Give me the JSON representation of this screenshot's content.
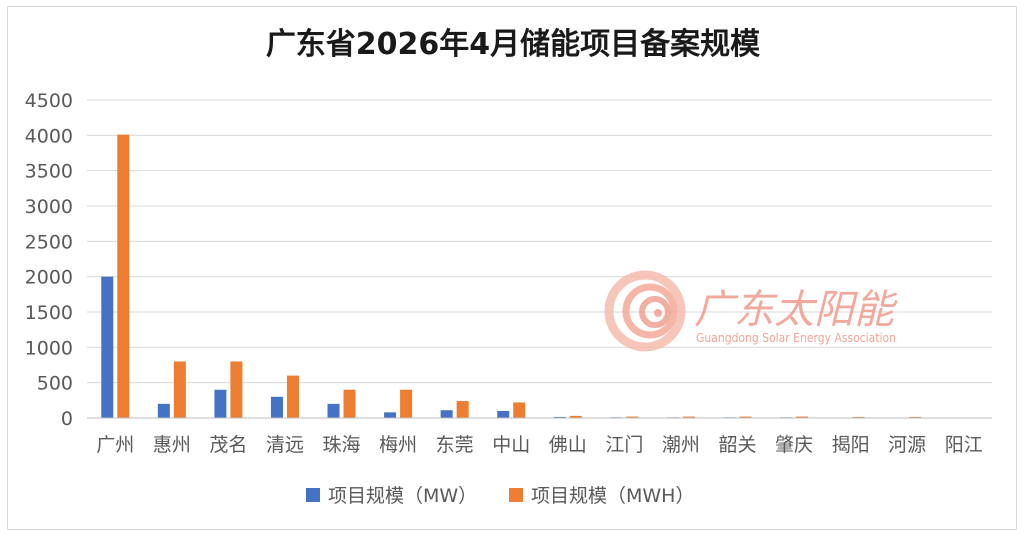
{
  "chart_data": {
    "type": "bar",
    "title": "广东省2026年4月储能项目备案规模",
    "xlabel": "",
    "ylabel": "",
    "ylim": [
      0,
      4500
    ],
    "yticks": [
      0,
      500,
      1000,
      1500,
      2000,
      2500,
      3000,
      3500,
      4000,
      4500
    ],
    "grid": true,
    "legend_position": "bottom",
    "categories": [
      "广州",
      "惠州",
      "茂名",
      "清远",
      "珠海",
      "梅州",
      "东莞",
      "中山",
      "佛山",
      "江门",
      "潮州",
      "韶关",
      "肇庆",
      "揭阳",
      "河源",
      "阳江"
    ],
    "series": [
      {
        "name": "项目规模（MW）",
        "color": "#4472c4",
        "values": [
          2000,
          200,
          400,
          300,
          200,
          80,
          110,
          100,
          15,
          10,
          10,
          10,
          10,
          3,
          2,
          1
        ]
      },
      {
        "name": "项目规模（MWH）",
        "color": "#ed7d31",
        "values": [
          4010,
          800,
          800,
          600,
          400,
          400,
          240,
          220,
          30,
          20,
          20,
          20,
          20,
          15,
          15,
          3
        ]
      }
    ]
  },
  "watermark": {
    "name_cn": "广东太阳能",
    "name_en": "Guangdong Solar Energy Association",
    "logo_icon": "swirl-logo-icon",
    "color": "#f19a8c"
  }
}
